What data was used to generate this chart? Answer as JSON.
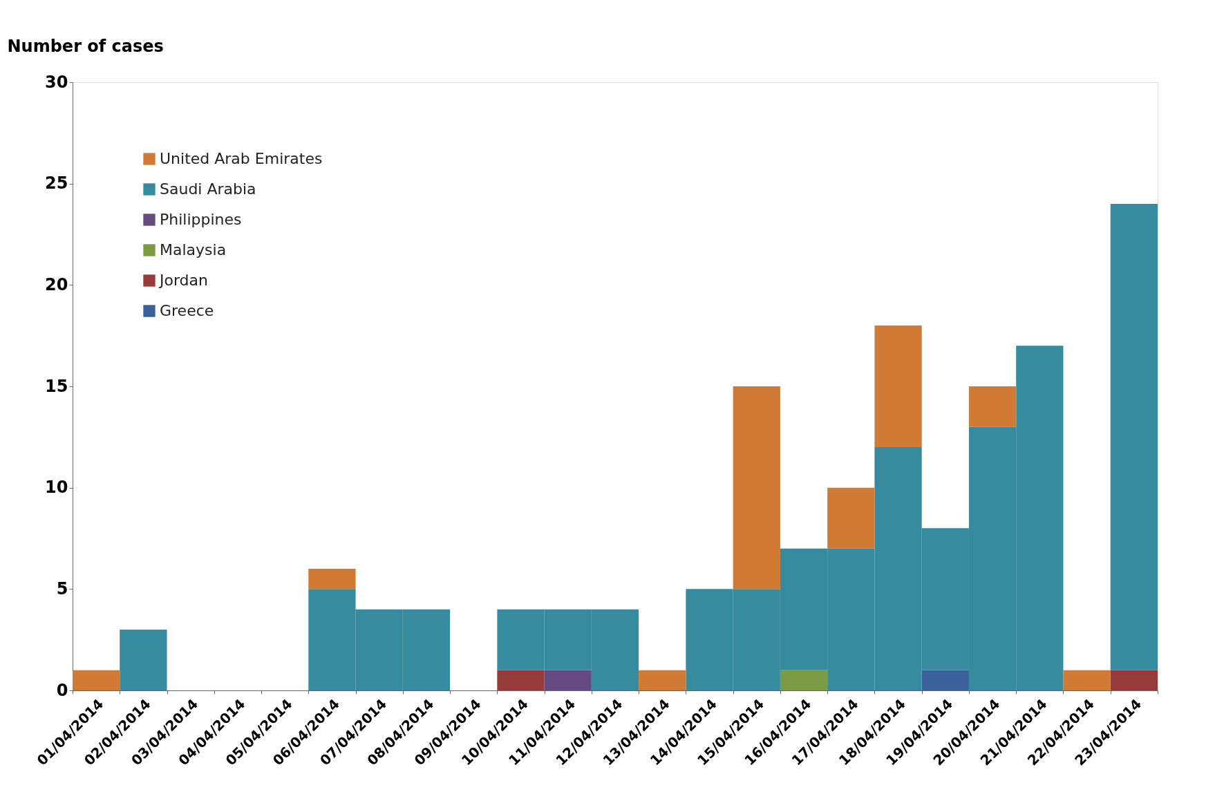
{
  "chart_data": {
    "type": "bar",
    "stacked": true,
    "ylabel": "Number of cases",
    "categories": [
      "01/04/2014",
      "02/04/2014",
      "03/04/2014",
      "04/04/2014",
      "05/04/2014",
      "06/04/2014",
      "07/04/2014",
      "08/04/2014",
      "09/04/2014",
      "10/04/2014",
      "11/04/2014",
      "12/04/2014",
      "13/04/2014",
      "14/04/2014",
      "15/04/2014",
      "16/04/2014",
      "17/04/2014",
      "18/04/2014",
      "19/04/2014",
      "20/04/2014",
      "21/04/2014",
      "22/04/2014",
      "23/04/2014"
    ],
    "series": [
      {
        "name": "Greece",
        "color": "#3a619a",
        "values": [
          0,
          0,
          0,
          0,
          0,
          0,
          0,
          0,
          0,
          0,
          0,
          0,
          0,
          0,
          0,
          0,
          0,
          0,
          1,
          0,
          0,
          0,
          0
        ]
      },
      {
        "name": "Jordan",
        "color": "#973a3a",
        "values": [
          0,
          0,
          0,
          0,
          0,
          0,
          0,
          0,
          0,
          1,
          0,
          0,
          0,
          0,
          0,
          0,
          0,
          0,
          0,
          0,
          0,
          0,
          1
        ]
      },
      {
        "name": "Malaysia",
        "color": "#7a9a44",
        "values": [
          0,
          0,
          0,
          0,
          0,
          0,
          0,
          0,
          0,
          0,
          0,
          0,
          0,
          0,
          0,
          1,
          0,
          0,
          0,
          0,
          0,
          0,
          0
        ]
      },
      {
        "name": "Philippines",
        "color": "#654a7f",
        "values": [
          0,
          0,
          0,
          0,
          0,
          0,
          0,
          0,
          0,
          0,
          1,
          0,
          0,
          0,
          0,
          0,
          0,
          0,
          0,
          0,
          0,
          0,
          0
        ]
      },
      {
        "name": "Saudi Arabia",
        "color": "#368c9e",
        "values": [
          0,
          3,
          0,
          0,
          0,
          5,
          4,
          4,
          0,
          3,
          3,
          4,
          0,
          5,
          5,
          6,
          7,
          12,
          7,
          13,
          17,
          0,
          23
        ]
      },
      {
        "name": "United Arab Emirates",
        "color": "#d07a35",
        "values": [
          1,
          0,
          0,
          0,
          0,
          1,
          0,
          0,
          0,
          0,
          0,
          0,
          1,
          0,
          10,
          0,
          3,
          6,
          0,
          2,
          0,
          1,
          0
        ]
      }
    ],
    "ylim": [
      0,
      30
    ],
    "yticks": [
      0,
      5,
      10,
      15,
      20,
      25,
      30
    ],
    "grid": false,
    "legend": "top left"
  }
}
